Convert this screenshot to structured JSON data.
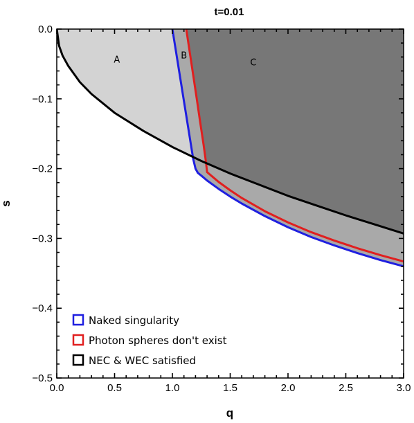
{
  "chart_data": {
    "type": "area",
    "title": "t=0.01",
    "xlabel": "q",
    "ylabel": "s",
    "xlim": [
      0,
      3
    ],
    "ylim": [
      -0.5,
      0
    ],
    "xticks": [
      "0.0",
      "0.5",
      "1.0",
      "1.5",
      "2.0",
      "2.5",
      "3.0"
    ],
    "yticks": [
      "0.0",
      "−0.1",
      "−0.2",
      "−0.3",
      "−0.4",
      "−0.5"
    ],
    "grid": false,
    "legend_position": "bottom-left",
    "colors": {
      "naked_singularity": "#1f1fe0",
      "photon_spheres": "#e01f1f",
      "nec_wec": "#000000",
      "region_A": "#d3d3d3",
      "region_B": "#a9a9a9",
      "region_C": "#777777"
    },
    "region_labels": [
      {
        "text": "A",
        "q": 0.52,
        "s": -0.048
      },
      {
        "text": "B",
        "q": 1.1,
        "s": -0.042
      },
      {
        "text": "C",
        "q": 1.7,
        "s": -0.052
      }
    ],
    "series": [
      {
        "name": "Naked singularity",
        "color": "#1f1fe0",
        "x": [
          1.0,
          1.03,
          1.06,
          1.09,
          1.12,
          1.15,
          1.18,
          1.2,
          1.22,
          1.25,
          1.3,
          1.4,
          1.5,
          1.6,
          1.8,
          2.0,
          2.2,
          2.4,
          2.6,
          2.8,
          3.0
        ],
        "y": [
          0.0,
          -0.031,
          -0.062,
          -0.093,
          -0.124,
          -0.155,
          -0.186,
          -0.2,
          -0.206,
          -0.21,
          -0.217,
          -0.229,
          -0.24,
          -0.25,
          -0.268,
          -0.284,
          -0.298,
          -0.31,
          -0.321,
          -0.331,
          -0.34
        ]
      },
      {
        "name": "Photon spheres don't exist",
        "color": "#e01f1f",
        "x": [
          1.12,
          1.15,
          1.18,
          1.21,
          1.24,
          1.27,
          1.29,
          1.3,
          1.35,
          1.4,
          1.5,
          1.6,
          1.8,
          2.0,
          2.2,
          2.4,
          2.6,
          2.8,
          3.0
        ],
        "y": [
          0.0,
          -0.033,
          -0.066,
          -0.099,
          -0.133,
          -0.166,
          -0.19,
          -0.205,
          -0.212,
          -0.219,
          -0.231,
          -0.242,
          -0.261,
          -0.277,
          -0.291,
          -0.303,
          -0.314,
          -0.324,
          -0.333
        ]
      },
      {
        "name": "NEC & WEC satisfied",
        "color": "#000000",
        "x": [
          0.0,
          0.02,
          0.05,
          0.1,
          0.2,
          0.3,
          0.5,
          0.75,
          1.0,
          1.25,
          1.5,
          1.75,
          2.0,
          2.25,
          2.5,
          2.75,
          3.0
        ],
        "y": [
          0.0,
          -0.024,
          -0.038,
          -0.053,
          -0.076,
          -0.093,
          -0.12,
          -0.146,
          -0.169,
          -0.189,
          -0.207,
          -0.223,
          -0.239,
          -0.253,
          -0.267,
          -0.28,
          -0.293
        ]
      }
    ]
  }
}
